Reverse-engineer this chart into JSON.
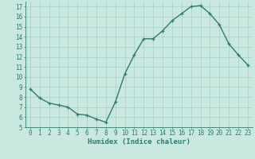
{
  "x": [
    0,
    1,
    2,
    3,
    4,
    5,
    6,
    7,
    8,
    9,
    10,
    11,
    12,
    13,
    14,
    15,
    16,
    17,
    18,
    19,
    20,
    21,
    22,
    23
  ],
  "y": [
    8.8,
    7.9,
    7.4,
    7.2,
    7.0,
    6.3,
    6.2,
    5.8,
    5.5,
    7.5,
    10.3,
    12.2,
    13.8,
    13.8,
    14.6,
    15.6,
    16.3,
    17.0,
    17.1,
    16.3,
    15.2,
    13.3,
    12.2,
    11.2
  ],
  "xlabel": "Humidex (Indice chaleur)",
  "line_color": "#2e7d6e",
  "marker": "+",
  "bg_color": "#c8e8e0",
  "grid_color": "#a8cfc8",
  "text_color": "#2e7d6e",
  "ylim": [
    5,
    17.5
  ],
  "xlim": [
    -0.5,
    23.5
  ],
  "yticks": [
    5,
    6,
    7,
    8,
    9,
    10,
    11,
    12,
    13,
    14,
    15,
    16,
    17
  ],
  "xticks": [
    0,
    1,
    2,
    3,
    4,
    5,
    6,
    7,
    8,
    9,
    10,
    11,
    12,
    13,
    14,
    15,
    16,
    17,
    18,
    19,
    20,
    21,
    22,
    23
  ],
  "tick_fontsize": 5.5,
  "xlabel_fontsize": 6.5,
  "marker_size": 3.5,
  "linewidth": 1.0
}
